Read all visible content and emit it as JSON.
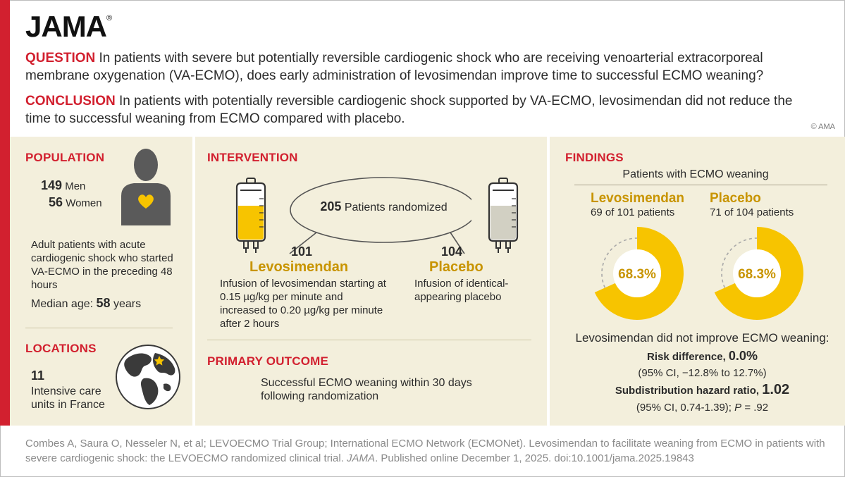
{
  "brand": {
    "logo": "JAMA",
    "reg": "®",
    "copyright": "© AMA"
  },
  "question": {
    "label": "QUESTION",
    "text": "In patients with severe but potentially reversible cardiogenic shock who are receiving venoarterial extracorporeal membrane oxygenation (VA-ECMO), does early administration of levosimendan improve time to successful ECMO weaning?"
  },
  "conclusion": {
    "label": "CONCLUSION",
    "text": "In patients with potentially reversible cardiogenic shock supported by VA-ECMO, levosimendan did not reduce the time to successful weaning from ECMO compared with placebo."
  },
  "population": {
    "heading": "POPULATION",
    "men_count": "149",
    "men_label": "Men",
    "women_count": "56",
    "women_label": "Women",
    "description": "Adult patients with acute cardiogenic shock who started VA-ECMO in the preceding 48 hours",
    "median_label": "Median age:",
    "median_value": "58",
    "median_unit": "years"
  },
  "locations": {
    "heading": "LOCATIONS",
    "count": "11",
    "description": "Intensive care units in France"
  },
  "intervention": {
    "heading": "INTERVENTION",
    "randomized_count": "205",
    "randomized_label": "Patients randomized",
    "arm1_count": "101",
    "arm1_name": "Levosimendan",
    "arm1_desc": "Infusion of levosimendan starting at 0.15 µg/kg per minute and increased to 0.20 µg/kg per minute after 2 hours",
    "arm2_count": "104",
    "arm2_name": "Placebo",
    "arm2_desc": "Infusion of identical-appearing placebo"
  },
  "outcome": {
    "heading": "PRIMARY OUTCOME",
    "text": "Successful ECMO weaning within 30 days following randomization"
  },
  "findings": {
    "heading": "FINDINGS",
    "subheading": "Patients with ECMO weaning",
    "arm1_name": "Levosimendan",
    "arm1_sub": "69 of 101 patients",
    "arm1_pct_label": "68.3%",
    "arm2_name": "Placebo",
    "arm2_sub": "71 of 104 patients",
    "arm2_pct_label": "68.3%",
    "summary": "Levosimendan did not improve ECMO weaning:",
    "rd_label": "Risk difference,",
    "rd_value": "0.0%",
    "rd_ci": "(95% CI, −12.8% to 12.7%)",
    "shr_label": "Subdistribution hazard ratio,",
    "shr_value": "1.02",
    "shr_ci": "(95% CI, 0.74-1.39);",
    "shr_p_label": "P",
    "shr_p_value": " = .92"
  },
  "chart_data": {
    "type": "pie",
    "series": [
      {
        "name": "Levosimendan",
        "values": [
          68.3
        ]
      },
      {
        "name": "Placebo",
        "values": [
          68.3
        ]
      }
    ],
    "colors": {
      "fill": "#f7c400",
      "dash": "#a8a8a8",
      "inner": "#ffffff"
    }
  },
  "citation": {
    "part1": "Combes A, Saura O, Nesseler N, et al; LEVOECMO Trial Group; International ECMO Network (ECMONet). Levosimendan to facilitate weaning from ECMO in patients with severe cardiogenic shock: the LEVOECMO randomized clinical trial.",
    "journal": "JAMA",
    "part2": ". Published online December 1, 2025. doi:10.1001/jama.2025.19843"
  }
}
